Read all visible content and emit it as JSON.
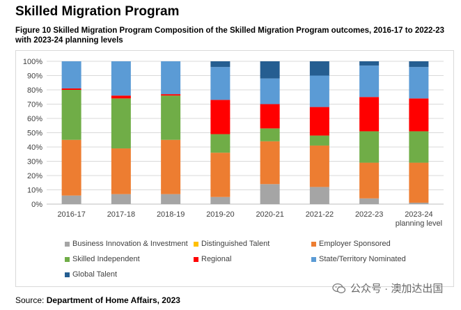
{
  "page": {
    "heading": "Skilled Migration Program",
    "caption": "Figure 10 Skilled Migration Program Composition of the Skilled Migration Program outcomes, 2016-17 to 2022-23 with 2023-24 planning levels",
    "source_prefix": "Source: ",
    "source_name": "Department of Home Affairs, 2023",
    "watermark": "公众号 · 澳加达出国"
  },
  "chart_data": {
    "type": "bar",
    "stacked": true,
    "percent": true,
    "title": "",
    "xlabel": "",
    "ylabel": "",
    "ylim": [
      0,
      100
    ],
    "yticks": [
      "0%",
      "10%",
      "20%",
      "30%",
      "40%",
      "50%",
      "60%",
      "70%",
      "80%",
      "90%",
      "100%"
    ],
    "grid": true,
    "legend_position": "bottom",
    "categories": [
      "2016-17",
      "2017-18",
      "2018-19",
      "2019-20",
      "2020-21",
      "2021-22",
      "2022-23",
      "2023-24\nplanning level"
    ],
    "series": [
      {
        "name": "Business Innovation & Investment",
        "color": "#a5a5a5",
        "values": [
          6,
          7,
          7,
          5,
          14,
          12,
          4,
          1
        ]
      },
      {
        "name": "Distinguished Talent",
        "color": "#ffc000",
        "values": [
          0,
          0,
          0,
          0,
          0,
          0,
          0,
          0
        ]
      },
      {
        "name": "Employer Sponsored",
        "color": "#ed7d31",
        "values": [
          39,
          32,
          38,
          31,
          30,
          29,
          25,
          28
        ]
      },
      {
        "name": "Skilled Independent",
        "color": "#70ad47",
        "values": [
          35,
          35,
          31,
          13,
          9,
          7,
          22,
          22
        ]
      },
      {
        "name": "Regional",
        "color": "#ff0000",
        "values": [
          1,
          2,
          1,
          24,
          17,
          20,
          24,
          23
        ]
      },
      {
        "name": "State/Territory Nominated",
        "color": "#5b9bd5",
        "values": [
          19,
          24,
          23,
          23,
          18,
          22,
          22,
          22
        ]
      },
      {
        "name": "Global Talent",
        "color": "#255e91",
        "values": [
          0,
          0,
          0,
          4,
          12,
          10,
          3,
          4
        ]
      }
    ]
  }
}
